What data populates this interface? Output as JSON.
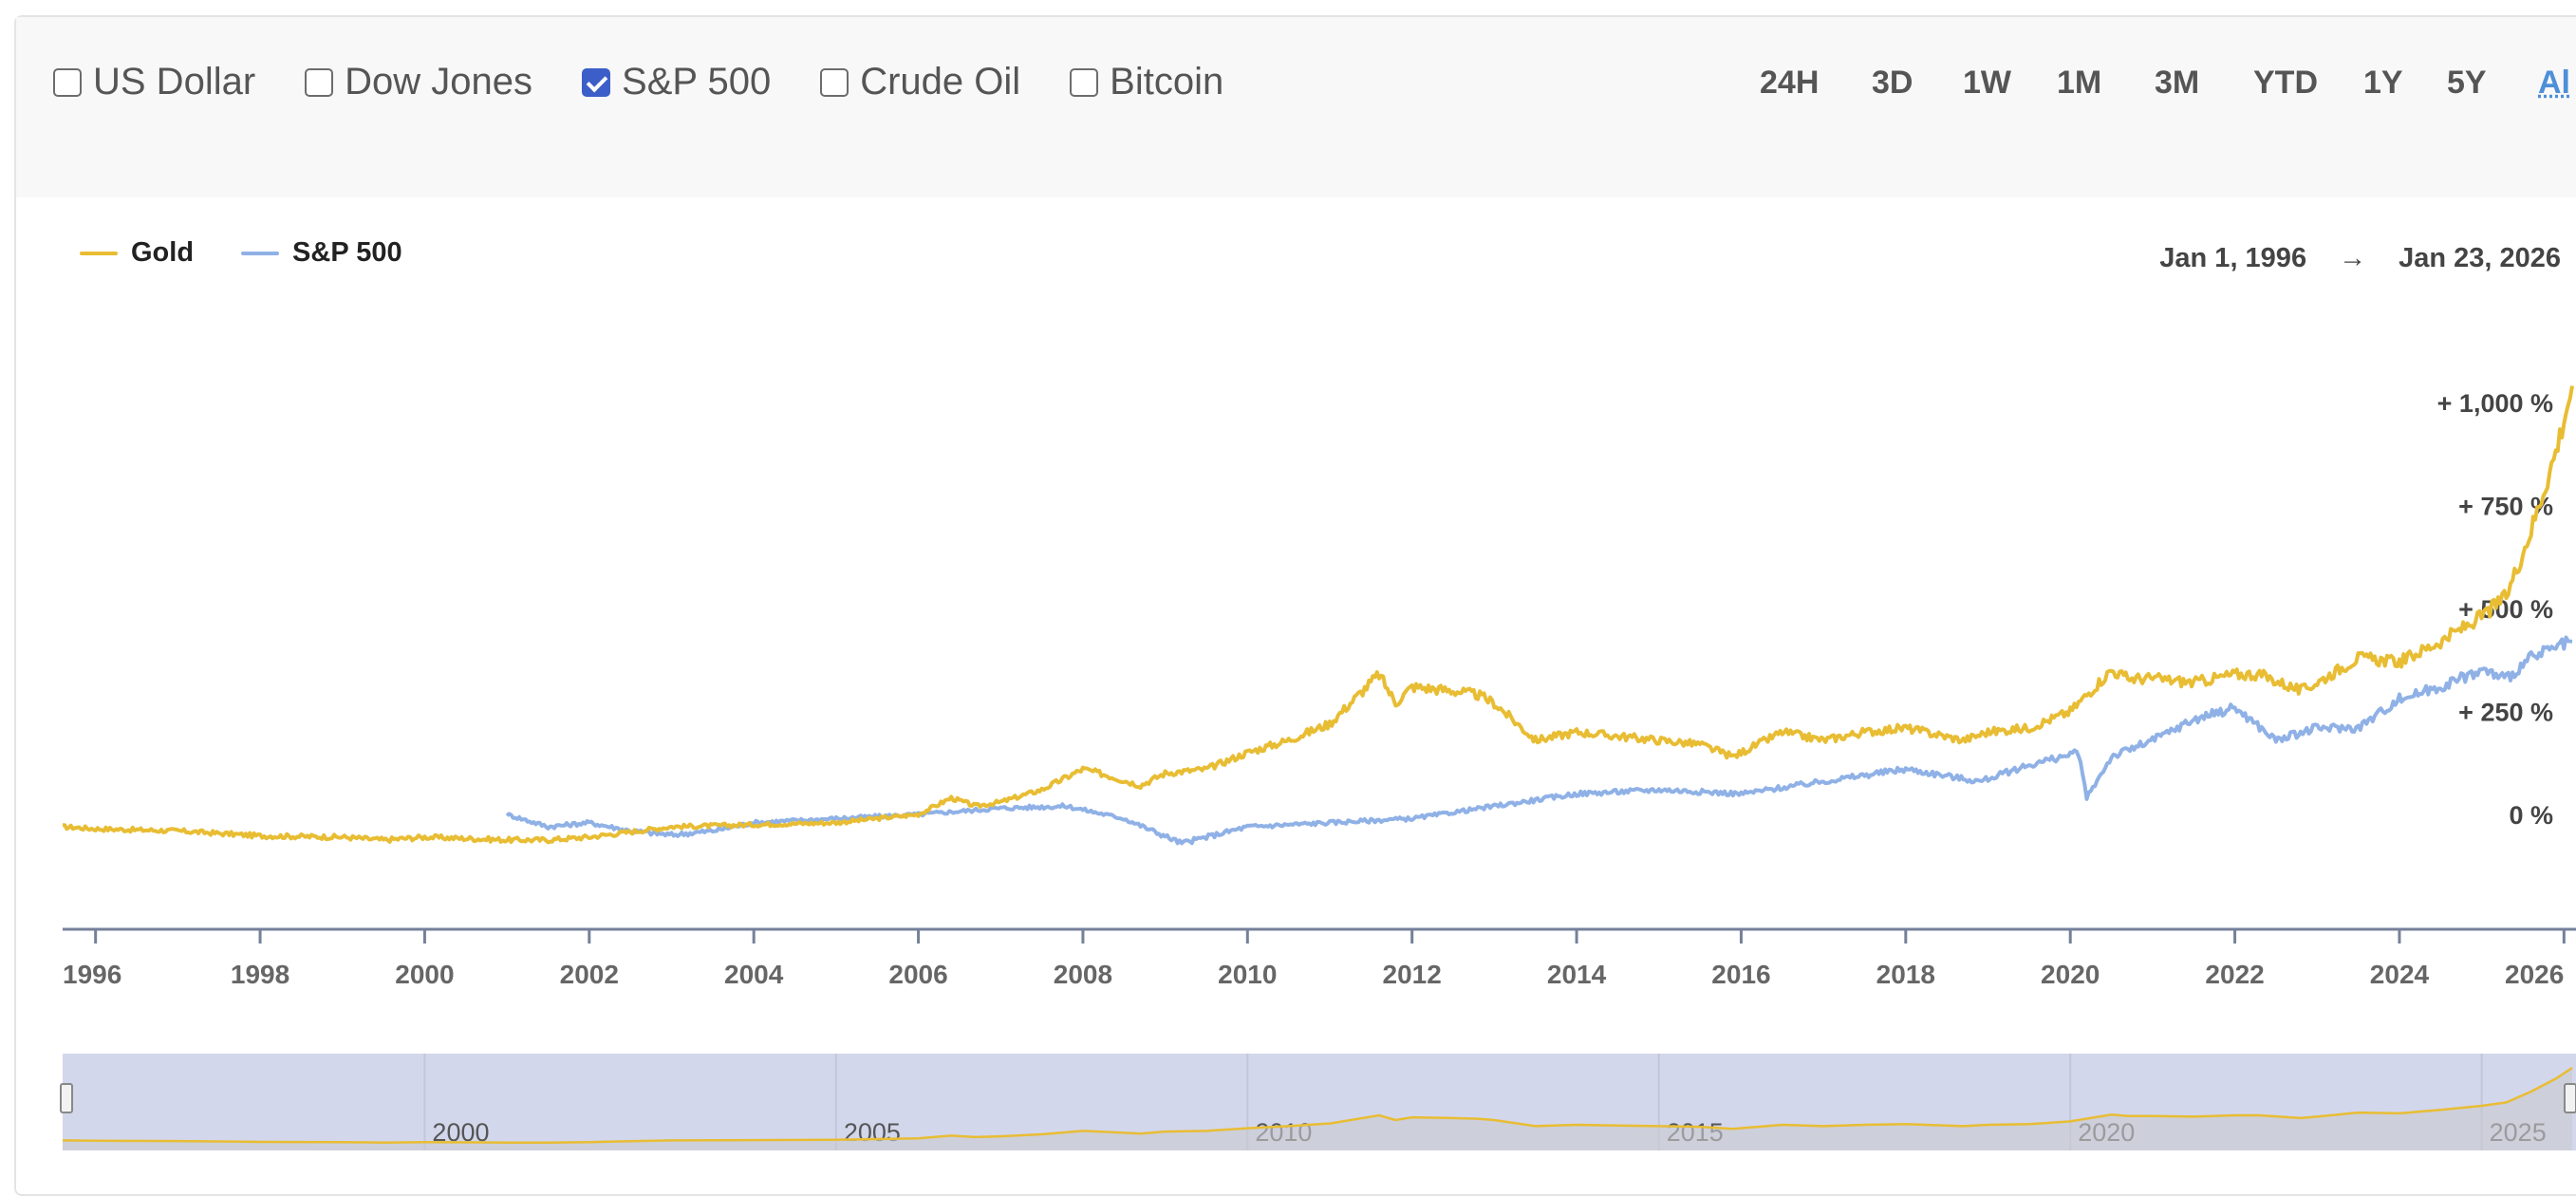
{
  "compare": {
    "items": [
      {
        "label": "US Dollar",
        "checked": false
      },
      {
        "label": "Dow Jones",
        "checked": false
      },
      {
        "label": "S&P 500",
        "checked": true
      },
      {
        "label": "Crude Oil",
        "checked": false
      },
      {
        "label": "Bitcoin",
        "checked": false
      }
    ]
  },
  "ranges": {
    "items": [
      "24H",
      "3D",
      "1W",
      "1M",
      "3M",
      "YTD",
      "1Y",
      "5Y",
      "Al"
    ],
    "active": "Al"
  },
  "date_range": {
    "from": "Jan 1, 1996",
    "arrow": "→",
    "to": "Jan 23, 2026"
  },
  "colors": {
    "gold": "#e8bd33",
    "sp500": "#8fb1e6",
    "navigator_mask": "#d3d7ec"
  },
  "chart_data": {
    "type": "line",
    "y_unit": "percent change",
    "ylim": [
      -280,
      1100
    ],
    "xlim": [
      1995.6,
      2026.1
    ],
    "y_ticks": [
      0,
      250,
      500,
      750,
      1000
    ],
    "y_tick_labels": [
      "0 %",
      "+ 250 %",
      "+ 500 %",
      "+ 750 %",
      "+ 1,000 %"
    ],
    "x_ticks": [
      "1996",
      "1998",
      "2000",
      "2002",
      "2004",
      "2006",
      "2008",
      "2010",
      "2012",
      "2014",
      "2016",
      "2018",
      "2020",
      "2022",
      "2024",
      "2026"
    ],
    "navigator_ticks": [
      "2000",
      "2005",
      "2010",
      "2015",
      "2020",
      "2025"
    ],
    "legend_position": "top-left",
    "grid": false,
    "series": [
      {
        "name": "Gold",
        "x": [
          1995.6,
          1996.0,
          1997.0,
          1998.0,
          1999.0,
          1999.5,
          2000.0,
          2001.0,
          2001.5,
          2002.0,
          2003.0,
          2004.0,
          2005.0,
          2005.5,
          2006.0,
          2006.4,
          2006.7,
          2007.0,
          2007.5,
          2008.0,
          2008.2,
          2008.7,
          2009.0,
          2009.5,
          2010.0,
          2010.5,
          2011.0,
          2011.6,
          2011.8,
          2012.0,
          2012.5,
          2012.8,
          2013.0,
          2013.5,
          2014.0,
          2014.5,
          2015.0,
          2015.5,
          2015.9,
          2016.5,
          2017.0,
          2017.5,
          2018.0,
          2018.7,
          2019.0,
          2019.5,
          2020.0,
          2020.5,
          2020.7,
          2021.0,
          2021.5,
          2022.0,
          2022.3,
          2022.8,
          2023.0,
          2023.5,
          2024.0,
          2024.5,
          2025.0,
          2025.3,
          2025.6,
          2025.9,
          2026.1
        ],
        "y": [
          -30,
          -35,
          -40,
          -52,
          -55,
          -62,
          -55,
          -62,
          -62,
          -55,
          -30,
          -25,
          -20,
          -10,
          0,
          40,
          20,
          30,
          60,
          110,
          100,
          70,
          100,
          110,
          150,
          180,
          220,
          340,
          270,
          310,
          300,
          290,
          270,
          180,
          200,
          190,
          180,
          170,
          140,
          200,
          180,
          200,
          210,
          180,
          200,
          210,
          250,
          350,
          330,
          330,
          320,
          340,
          340,
          300,
          320,
          380,
          370,
          420,
          480,
          530,
          690,
          880,
          1040
        ]
      },
      {
        "name": "S&P 500",
        "x": [
          2001.0,
          2001.5,
          2002.0,
          2002.5,
          2003.0,
          2003.5,
          2004.0,
          2005.0,
          2006.0,
          2007.0,
          2007.8,
          2008.5,
          2009.2,
          2010.0,
          2011.0,
          2012.0,
          2013.0,
          2014.0,
          2015.0,
          2016.0,
          2017.0,
          2018.0,
          2018.9,
          2019.5,
          2020.1,
          2020.2,
          2020.5,
          2021.0,
          2021.5,
          2022.0,
          2022.5,
          2023.0,
          2023.5,
          2024.0,
          2024.5,
          2025.0,
          2025.3,
          2025.6,
          2026.1
        ],
        "y": [
          0,
          -30,
          -20,
          -40,
          -50,
          -40,
          -20,
          -10,
          0,
          15,
          20,
          -10,
          -70,
          -30,
          -20,
          -10,
          20,
          50,
          60,
          50,
          80,
          110,
          80,
          120,
          150,
          40,
          140,
          180,
          230,
          260,
          180,
          210,
          210,
          280,
          310,
          350,
          330,
          380,
          420
        ]
      }
    ]
  }
}
